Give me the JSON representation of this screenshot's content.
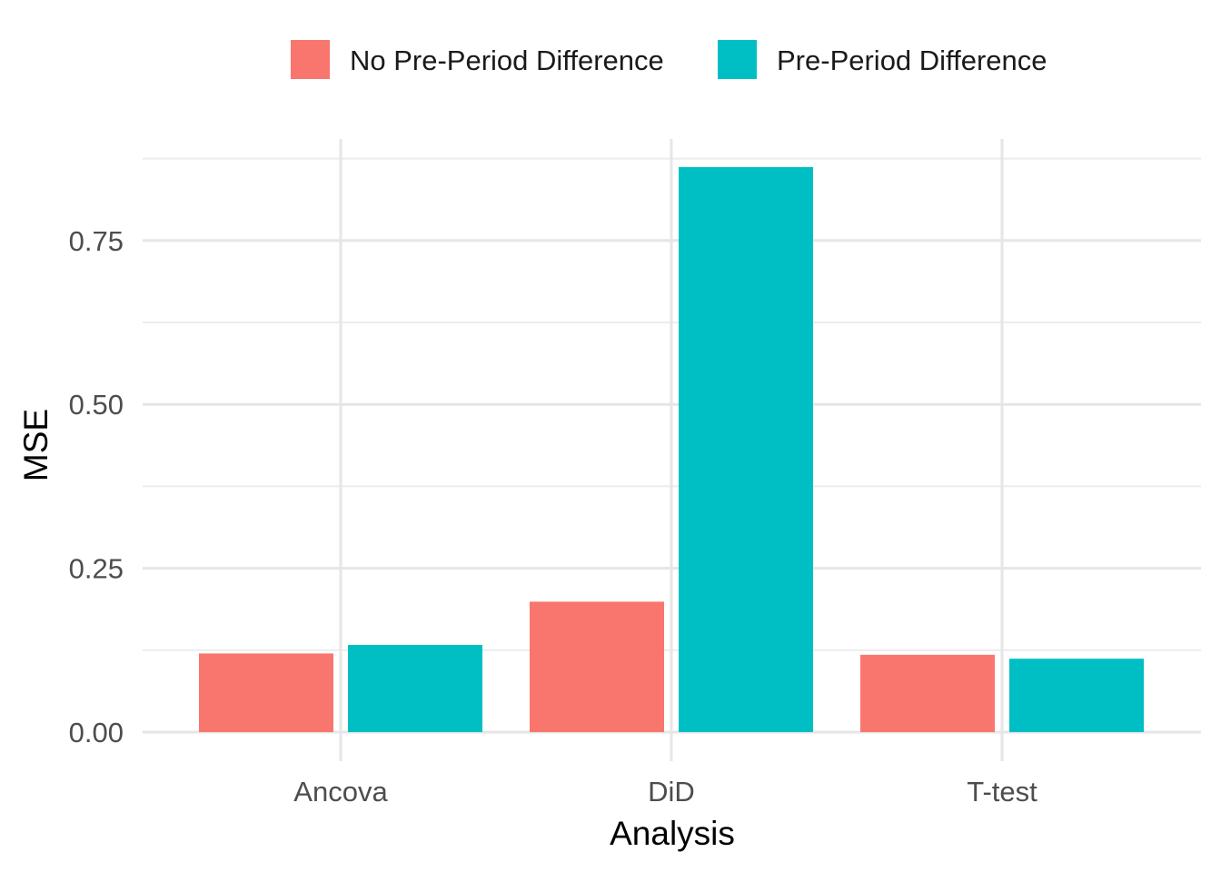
{
  "chart_data": {
    "type": "bar",
    "title": "",
    "xlabel": "Analysis",
    "ylabel": "MSE",
    "categories": [
      "Ancova",
      "DiD",
      "T-test"
    ],
    "series": [
      {
        "name": "No Pre-Period Difference",
        "color": "#F8766D",
        "values": [
          0.12,
          0.199,
          0.118
        ]
      },
      {
        "name": "Pre-Period Difference",
        "color": "#00BFC4",
        "values": [
          0.133,
          0.862,
          0.112
        ]
      }
    ],
    "ylim": [
      0,
      0.885
    ],
    "yticks": [
      0.0,
      0.25,
      0.5,
      0.75
    ],
    "ytick_labels": [
      "0.00",
      "0.25",
      "0.50",
      "0.75"
    ],
    "legend_position": "top",
    "grid": true
  }
}
